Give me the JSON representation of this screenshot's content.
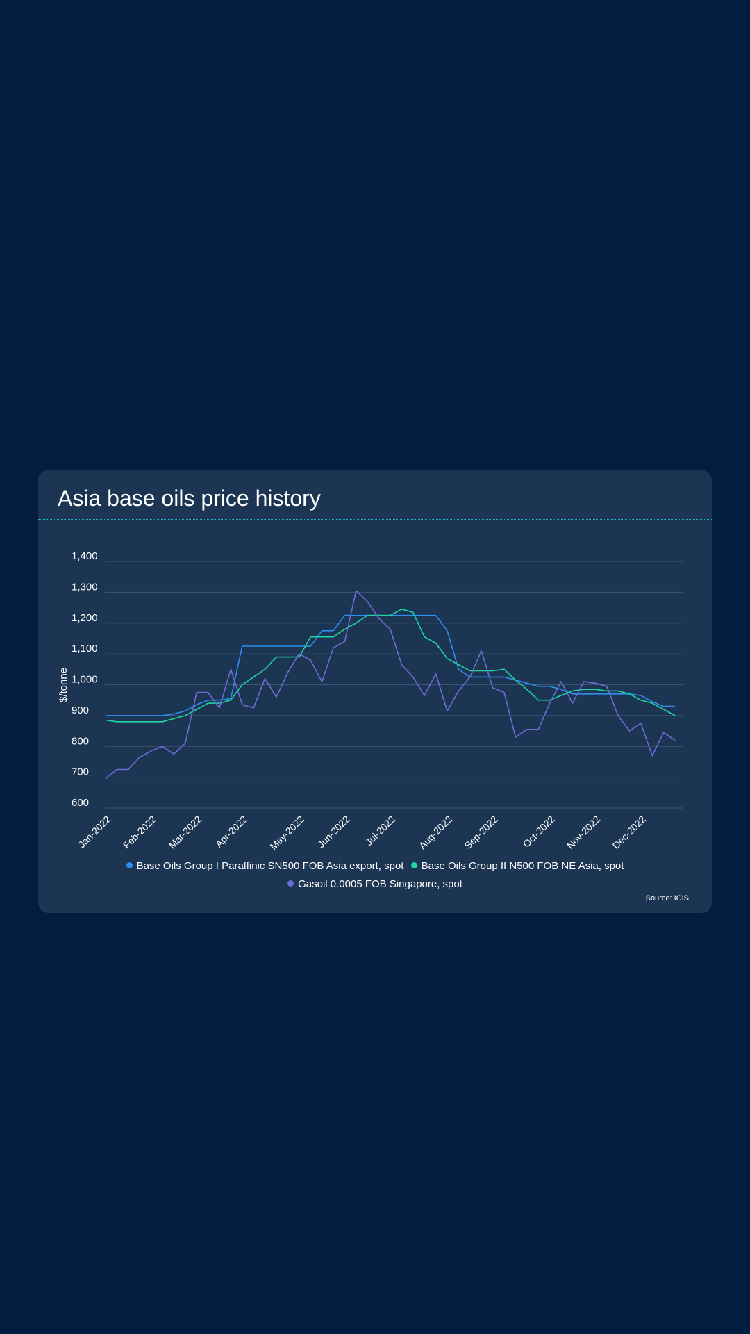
{
  "title": "Asia base oils price history",
  "source": "Source: ICIS",
  "chart_data": {
    "type": "line",
    "title": "Asia base oils price history",
    "ylabel": "$/tonne",
    "xlabel": "",
    "ylim": [
      600,
      1400
    ],
    "yticks": [
      600,
      700,
      800,
      900,
      1000,
      1100,
      1200,
      1300,
      1400
    ],
    "ytick_labels": [
      "600",
      "700",
      "800",
      "900",
      "1,000",
      "1,100",
      "1,200",
      "1,300",
      "1,400"
    ],
    "xtick_labels": [
      "Jan-2022",
      "Feb-2022",
      "Mar-2022",
      "Apr-2022",
      "May-2022",
      "Jun-2022",
      "Jul-2022",
      "Aug-2022",
      "Sep-2022",
      "Oct-2022",
      "Nov-2022",
      "Dec-2022"
    ],
    "xtick_weeks": [
      0,
      4,
      8,
      12,
      17,
      21,
      25,
      30,
      34,
      39,
      43,
      47
    ],
    "grid": true,
    "legend_position": "bottom",
    "x": [
      "2022-01-07",
      "2022-01-14",
      "2022-01-21",
      "2022-01-28",
      "2022-02-04",
      "2022-02-11",
      "2022-02-18",
      "2022-02-25",
      "2022-03-04",
      "2022-03-11",
      "2022-03-18",
      "2022-03-25",
      "2022-04-01",
      "2022-04-08",
      "2022-04-15",
      "2022-04-22",
      "2022-04-29",
      "2022-05-06",
      "2022-05-13",
      "2022-05-20",
      "2022-05-27",
      "2022-06-03",
      "2022-06-10",
      "2022-06-17",
      "2022-06-24",
      "2022-07-01",
      "2022-07-08",
      "2022-07-15",
      "2022-07-22",
      "2022-07-29",
      "2022-08-05",
      "2022-08-12",
      "2022-08-19",
      "2022-08-26",
      "2022-09-02",
      "2022-09-09",
      "2022-09-16",
      "2022-09-23",
      "2022-09-30",
      "2022-10-07",
      "2022-10-14",
      "2022-10-21",
      "2022-10-28",
      "2022-11-04",
      "2022-11-11",
      "2022-11-18",
      "2022-11-25",
      "2022-12-02",
      "2022-12-09",
      "2022-12-16",
      "2022-12-23"
    ],
    "series": [
      {
        "name": "Base Oils Group I Paraffinic SN500 FOB Asia export, spot",
        "color": "#2d8ff0",
        "values": [
          900,
          900,
          900,
          900,
          900,
          900,
          905,
          915,
          935,
          950,
          950,
          955,
          1125,
          1125,
          1125,
          1125,
          1125,
          1125,
          1125,
          1175,
          1175,
          1225,
          1225,
          1225,
          1225,
          1225,
          1225,
          1225,
          1225,
          1225,
          1175,
          1050,
          1025,
          1025,
          1025,
          1025,
          1015,
          1005,
          995,
          995,
          985,
          970,
          970,
          970,
          970,
          970,
          970,
          965,
          945,
          930,
          930
        ]
      },
      {
        "name": "Base Oils Group II N500 FOB NE Asia, spot",
        "color": "#1ed6a0",
        "values": [
          885,
          880,
          880,
          880,
          880,
          880,
          890,
          900,
          920,
          940,
          940,
          950,
          1000,
          1025,
          1050,
          1090,
          1090,
          1090,
          1155,
          1155,
          1155,
          1180,
          1200,
          1225,
          1225,
          1225,
          1245,
          1235,
          1155,
          1135,
          1085,
          1065,
          1045,
          1045,
          1045,
          1050,
          1015,
          985,
          950,
          950,
          965,
          980,
          985,
          985,
          980,
          980,
          970,
          950,
          940,
          920,
          900
        ]
      },
      {
        "name": "Gasoil 0.0005 FOB Singapore, spot",
        "color": "#6f6cd6",
        "values": [
          695,
          725,
          725,
          765,
          785,
          800,
          775,
          810,
          975,
          975,
          925,
          1050,
          935,
          925,
          1020,
          960,
          1040,
          1100,
          1080,
          1010,
          1120,
          1140,
          1305,
          1270,
          1215,
          1180,
          1065,
          1025,
          965,
          1035,
          915,
          980,
          1025,
          1110,
          990,
          975,
          830,
          855,
          855,
          940,
          1010,
          940,
          1010,
          1005,
          995,
          900,
          850,
          875,
          770,
          845,
          820
        ]
      }
    ]
  }
}
